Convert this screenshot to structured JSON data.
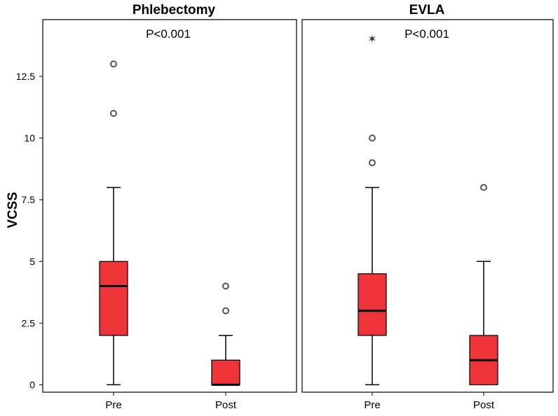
{
  "chart_data": {
    "type": "boxplot",
    "ylabel": "VCSS",
    "ylim": [
      -0.3,
      14.8
    ],
    "yticks": [
      0,
      2.5,
      5,
      7.5,
      10,
      12.5
    ],
    "ytick_labels": [
      "0",
      "2.5",
      "5",
      "7.5",
      "10",
      "12.5"
    ],
    "categories": [
      "Pre",
      "Post"
    ],
    "box_color": "#ee3438",
    "panels": [
      {
        "title": "Phlebectomy",
        "annotation": "P<0.001",
        "groups": [
          {
            "category": "Pre",
            "min": 0,
            "q1": 2,
            "median": 4,
            "q3": 5,
            "max": 8,
            "outliers": [
              11,
              13
            ],
            "extremes": []
          },
          {
            "category": "Post",
            "min": 0,
            "q1": 0,
            "median": 0,
            "q3": 1,
            "max": 2,
            "outliers": [
              3,
              4
            ],
            "extremes": []
          }
        ]
      },
      {
        "title": "EVLA",
        "annotation": "P<0.001",
        "groups": [
          {
            "category": "Pre",
            "min": 0,
            "q1": 2,
            "median": 3,
            "q3": 4.5,
            "max": 8,
            "outliers": [
              9,
              10
            ],
            "extremes": [
              14
            ]
          },
          {
            "category": "Post",
            "min": 0,
            "q1": 0,
            "median": 1,
            "q3": 2,
            "max": 5,
            "outliers": [
              8
            ],
            "extremes": []
          }
        ]
      }
    ]
  }
}
